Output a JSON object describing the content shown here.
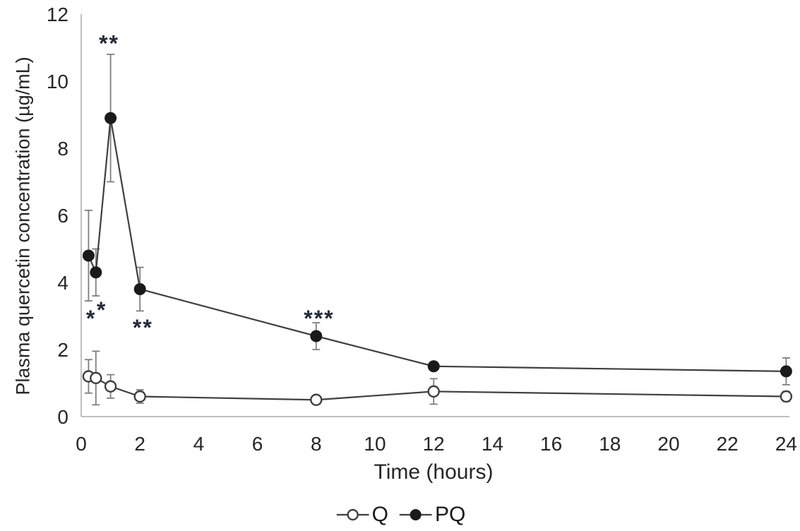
{
  "figure": {
    "y_axis_title": "Plasma quercetin concentration (µg/mL)",
    "x_axis_title": "Time (hours)",
    "legend": {
      "items": [
        {
          "label": "Q",
          "marker": "open-circle"
        },
        {
          "label": "PQ",
          "marker": "filled-circle"
        }
      ]
    }
  },
  "chart_data": {
    "type": "line",
    "title": "",
    "xlabel": "Time (hours)",
    "ylabel": "Plasma quercetin concentration (µg/mL)",
    "xlim": [
      0,
      24
    ],
    "ylim": [
      0,
      12
    ],
    "x_ticks": [
      0,
      2,
      4,
      6,
      8,
      10,
      12,
      14,
      16,
      18,
      20,
      22,
      24
    ],
    "y_ticks": [
      0,
      2,
      4,
      6,
      8,
      10,
      12
    ],
    "grid": false,
    "legend_position": "bottom-center",
    "x": [
      0.25,
      0.5,
      1,
      2,
      8,
      12,
      24
    ],
    "series": [
      {
        "name": "Q",
        "marker": "open-circle",
        "values": [
          1.2,
          1.15,
          0.9,
          0.6,
          0.5,
          0.75,
          0.6
        ],
        "errors": [
          0.5,
          0.8,
          0.35,
          0.2,
          null,
          0.38,
          0.15
        ]
      },
      {
        "name": "PQ",
        "marker": "filled-circle",
        "values": [
          4.8,
          4.3,
          8.9,
          3.8,
          2.4,
          1.5,
          1.35
        ],
        "errors": [
          1.35,
          0.7,
          1.9,
          0.65,
          0.4,
          null,
          0.4
        ]
      }
    ],
    "annotations": [
      {
        "text": "*",
        "x": 0.34,
        "y": 3.05
      },
      {
        "text": "*",
        "x": 0.7,
        "y": 3.31
      },
      {
        "text": "**",
        "x": 0.95,
        "y": 11.25
      },
      {
        "text": "**",
        "x": 2.1,
        "y": 2.78
      },
      {
        "text": "***",
        "x": 8.1,
        "y": 3.05
      }
    ],
    "colors": {
      "series_line": "#3f3f3f",
      "marker_fill": "#1a1a1a",
      "marker_open_fill": "#ffffff",
      "error_bar": "#7f7f7f",
      "axis_line": "#bfbfbf",
      "text": "#262626",
      "annotation": "#232b38"
    }
  }
}
